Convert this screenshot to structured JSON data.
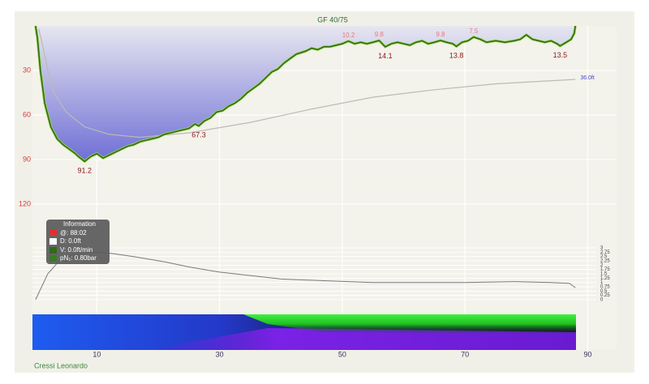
{
  "chart_data": {
    "type": "dive-profile",
    "gradient_factors": "GF 40/75",
    "xlim": [
      -0.5,
      94.7
    ],
    "xticks": [
      10,
      30,
      50,
      70,
      90
    ],
    "ylim": [
      0,
      140
    ],
    "yticks": [
      30,
      60,
      90,
      120
    ],
    "grid": true,
    "depth": {
      "color": "#2e6b1c",
      "x": [
        0,
        0.3,
        0.8,
        1.5,
        2.5,
        3.5,
        4.5,
        5.5,
        6.5,
        7,
        8,
        9,
        10,
        11,
        12,
        13,
        14,
        15,
        16,
        17,
        18,
        19,
        20,
        21,
        22,
        23,
        24,
        25,
        26,
        26.6,
        27.5,
        28.5,
        29.5,
        30.5,
        31.5,
        32.5,
        33.5,
        34.5,
        35.5,
        36.5,
        37.5,
        38.5,
        39.5,
        40.5,
        41.5,
        42.5,
        44,
        45,
        46,
        47,
        48,
        49,
        50,
        51,
        52,
        53,
        54,
        55,
        56,
        57,
        58,
        59,
        60,
        61,
        62,
        63,
        64,
        65,
        66,
        67,
        68,
        68.6,
        69.5,
        70.5,
        71.4,
        72.5,
        73.5,
        75,
        76.5,
        78,
        79,
        80,
        81,
        82,
        83,
        84,
        85,
        85.5,
        86.5,
        87.3,
        87.8,
        88
      ],
      "values": [
        0,
        8,
        30,
        52,
        68,
        76,
        80,
        83,
        86,
        88,
        91.2,
        88,
        86,
        89,
        87,
        85,
        83,
        81,
        80,
        78,
        77,
        76,
        75,
        73,
        72,
        71,
        70,
        69,
        66,
        67.3,
        64,
        62,
        58,
        57,
        54,
        52,
        49,
        45,
        42,
        39,
        35,
        31,
        29,
        25,
        22,
        19,
        17,
        15,
        16,
        14,
        14,
        13,
        12,
        10.2,
        12,
        11,
        12,
        11,
        9.8,
        14.1,
        12,
        11,
        12,
        13,
        11,
        10,
        12,
        11,
        9.8,
        11,
        12,
        13.8,
        11,
        10,
        7.5,
        9,
        11,
        10,
        11,
        10,
        9,
        6,
        9,
        10,
        11,
        10,
        12,
        13.5,
        11,
        9,
        5,
        0
      ]
    },
    "mean_depth": {
      "color": "#bdbab3",
      "x": [
        0.5,
        1,
        2,
        3,
        5,
        8,
        12,
        17,
        25,
        35,
        45,
        55,
        65,
        75,
        88
      ],
      "values": [
        2,
        10,
        30,
        45,
        58,
        68,
        73,
        75,
        72,
        65,
        56,
        48,
        43,
        39,
        36
      ],
      "end_label": "36.0ft"
    },
    "max_labels": {
      "color": "#8b1a1a",
      "x": [
        8,
        26.6,
        57,
        68.6,
        85.5
      ],
      "values": [
        91.2,
        67.3,
        14.1,
        13.8,
        13.5
      ]
    },
    "min_labels": {
      "color": "#e87a7a",
      "x": [
        51,
        56,
        66,
        71.4
      ],
      "values": [
        10.2,
        9.8,
        9.8,
        7.5
      ]
    },
    "pressure": {
      "color": "#7a7a7a",
      "ylim": [
        0,
        3
      ],
      "yticks": [
        0,
        0.25,
        0.5,
        0.75,
        1,
        1.25,
        1.5,
        1.75,
        2,
        2.25,
        2.5,
        2.75,
        3
      ],
      "x": [
        0,
        2,
        4,
        6,
        9,
        12,
        16,
        21,
        25,
        30,
        35,
        40,
        47,
        55,
        62,
        70,
        78,
        84,
        87,
        88
      ],
      "values": [
        0,
        1.5,
        2.3,
        2.6,
        2.75,
        2.7,
        2.5,
        2.2,
        1.9,
        1.6,
        1.4,
        1.2,
        1.1,
        1.0,
        1.0,
        1.0,
        1.05,
        1.0,
        0.95,
        0.7
      ]
    }
  },
  "info": {
    "title": "Information",
    "time": "@: 88:02",
    "depth": "D: 0.0ft",
    "velocity": "V: 0.0ft/min",
    "pn2": "pN₂: 0.80bar"
  },
  "computer": "Cressi Leonardo"
}
